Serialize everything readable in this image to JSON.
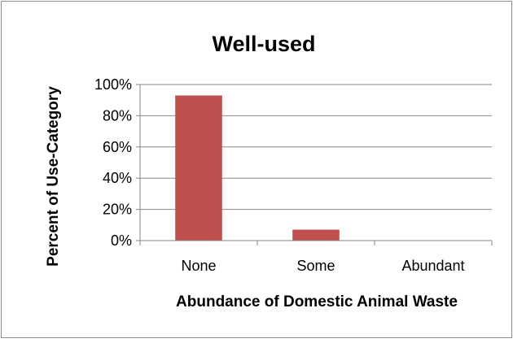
{
  "chart_data": {
    "type": "bar",
    "title": "Well-used",
    "xlabel": "Abundance of Domestic Animal Waste",
    "ylabel": "Percent of Use-Category",
    "categories": [
      "None",
      "Some",
      "Abundant"
    ],
    "values": [
      93,
      7,
      0
    ],
    "ylim": [
      0,
      100
    ],
    "yticks": [
      "0%",
      "20%",
      "40%",
      "60%",
      "80%",
      "100%"
    ],
    "ytick_values": [
      0,
      20,
      40,
      60,
      80,
      100
    ],
    "grid": true,
    "legend": "none",
    "bar_color": "#c0504d"
  }
}
